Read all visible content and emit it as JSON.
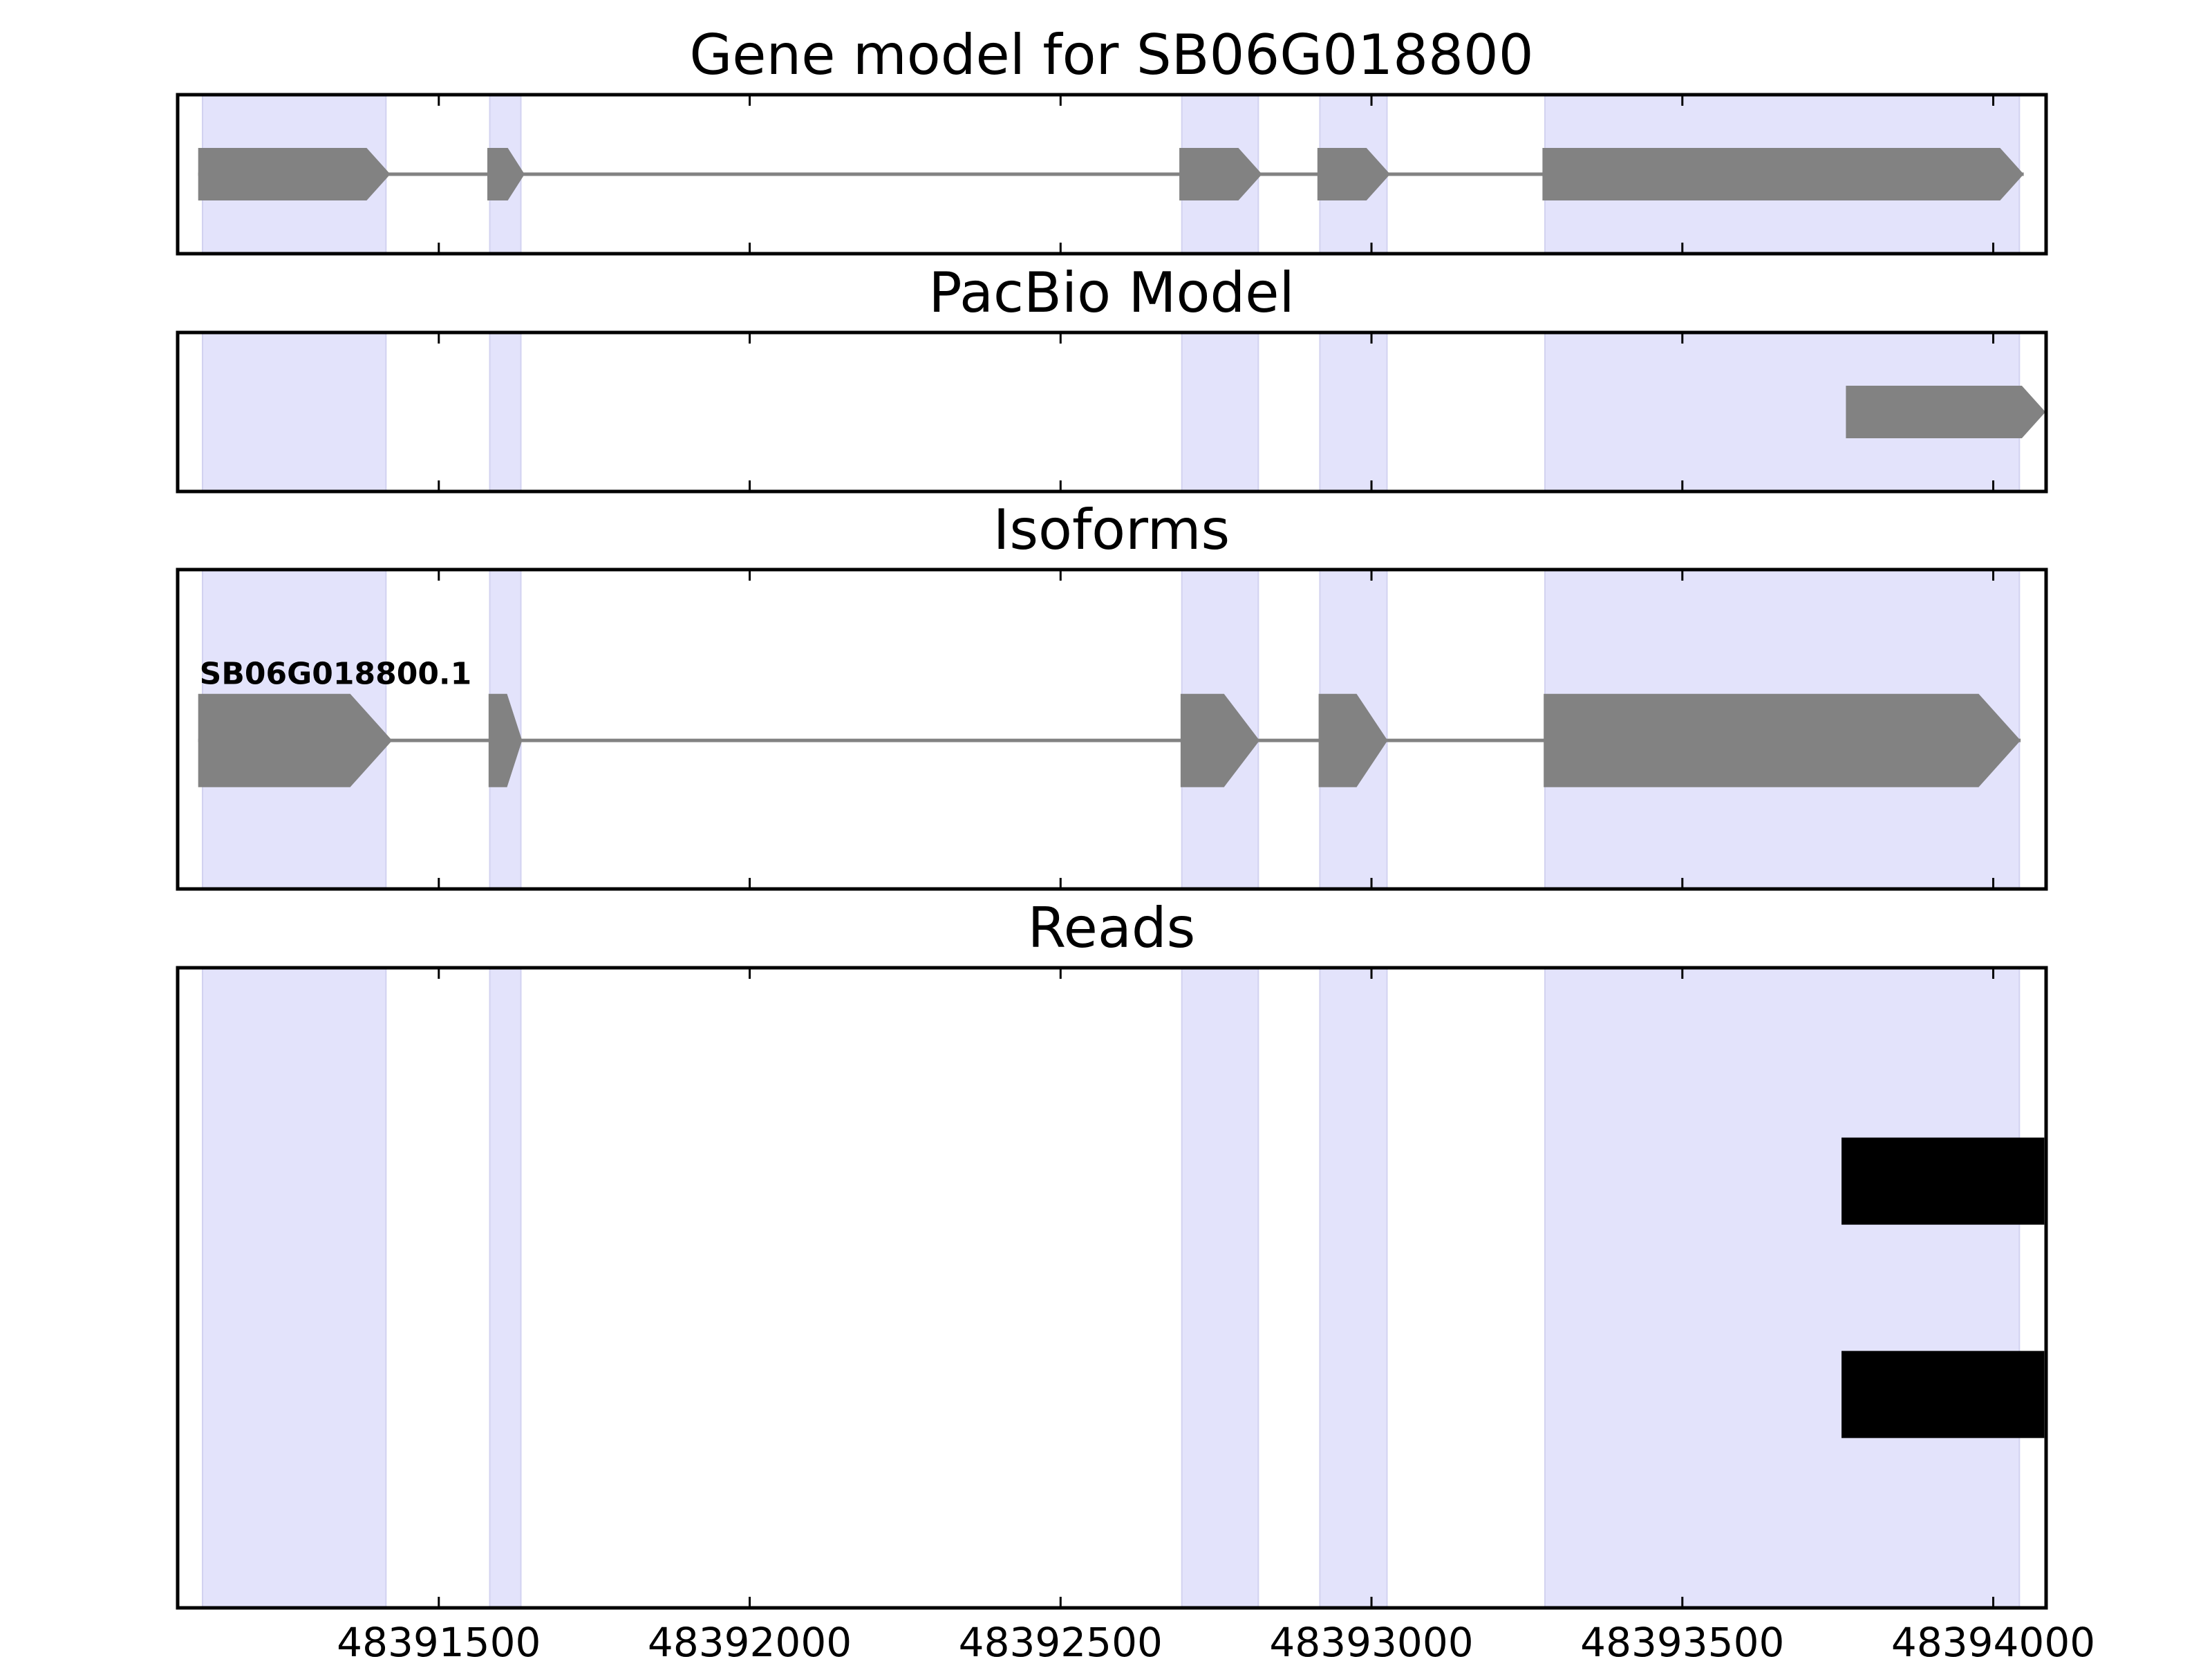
{
  "chart_data": {
    "type": "gene-track",
    "x_axis": {
      "xlim": [
        48391080,
        48394085
      ],
      "ticks": [
        48391500,
        48392000,
        48392500,
        48393000,
        48393500,
        48394000
      ]
    },
    "exon_regions": [
      [
        48391120,
        48391415
      ],
      [
        48391582,
        48391632
      ],
      [
        48392695,
        48392818
      ],
      [
        48392917,
        48393025
      ],
      [
        48393279,
        48394042
      ]
    ],
    "colors": {
      "exon_shade": "#e3e3fb",
      "feature": "#828282",
      "read": "#000000",
      "axes": "#000000"
    },
    "panels": [
      {
        "title": "Gene model for SB06G018800",
        "features": [
          {
            "kind": "gene",
            "strand": "+",
            "exons": [
              [
                48391113,
                48391422
              ],
              [
                48391578,
                48391638
              ],
              [
                48392691,
                48392824
              ],
              [
                48392913,
                48393030
              ],
              [
                48393275,
                48394049
              ]
            ]
          }
        ]
      },
      {
        "title": "PacBio Model",
        "features": [
          {
            "kind": "gene",
            "strand": "+",
            "exons": [
              [
                48393763,
                48394084
              ]
            ]
          }
        ]
      },
      {
        "title": "Isoforms",
        "features": [
          {
            "kind": "gene",
            "strand": "+",
            "label": "SB06G018800.1",
            "exons": [
              [
                48391113,
                48391425
              ],
              [
                48391580,
                48391634
              ],
              [
                48392693,
                48392820
              ],
              [
                48392915,
                48393026
              ],
              [
                48393277,
                48394044
              ]
            ]
          }
        ]
      },
      {
        "title": "Reads",
        "features": [
          {
            "kind": "read",
            "exons": [
              [
                48393756,
                48394082
              ]
            ]
          },
          {
            "kind": "read",
            "exons": [
              [
                48393756,
                48394082
              ]
            ]
          }
        ]
      }
    ]
  }
}
